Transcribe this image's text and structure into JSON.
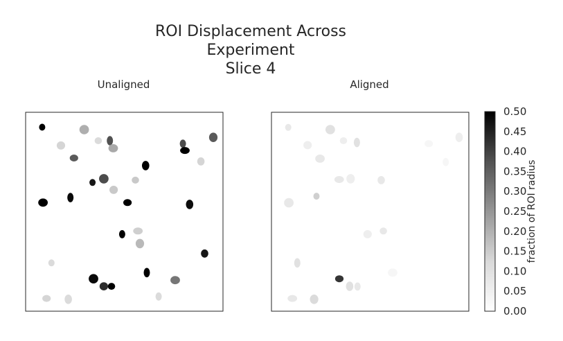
{
  "figure": {
    "title_lines": [
      "ROI Displacement Across",
      "Experiment",
      "Slice 4"
    ]
  },
  "chart_data": {
    "type": "heatmap",
    "title": "ROI Displacement Across Experiment Slice 4",
    "colormap": "Greys",
    "colorbar": {
      "label": "fraction of ROI radius",
      "range": [
        0.0,
        0.5
      ],
      "ticks": [
        "0.00",
        "0.05",
        "0.10",
        "0.15",
        "0.20",
        "0.25",
        "0.30",
        "0.35",
        "0.40",
        "0.45",
        "0.50"
      ]
    },
    "panels": [
      {
        "name": "Unaligned",
        "rois": [
          {
            "x": 8.4,
            "y": 7.5,
            "v": 0.5
          },
          {
            "x": 29.7,
            "y": 8.7,
            "v": 0.13
          },
          {
            "x": 17.9,
            "y": 16.7,
            "v": 0.06
          },
          {
            "x": 36.8,
            "y": 14.3,
            "v": 0.05
          },
          {
            "x": 42.7,
            "y": 14.3,
            "v": 0.32
          },
          {
            "x": 44.4,
            "y": 18.1,
            "v": 0.14
          },
          {
            "x": 24.5,
            "y": 23.0,
            "v": 0.3
          },
          {
            "x": 60.8,
            "y": 26.8,
            "v": 0.5
          },
          {
            "x": 79.7,
            "y": 15.8,
            "v": 0.33
          },
          {
            "x": 80.7,
            "y": 19.2,
            "v": 0.5
          },
          {
            "x": 95.1,
            "y": 12.6,
            "v": 0.3
          },
          {
            "x": 88.8,
            "y": 24.7,
            "v": 0.06
          },
          {
            "x": 33.9,
            "y": 35.3,
            "v": 0.45
          },
          {
            "x": 39.6,
            "y": 33.4,
            "v": 0.33
          },
          {
            "x": 44.6,
            "y": 39.0,
            "v": 0.08
          },
          {
            "x": 55.6,
            "y": 34.1,
            "v": 0.08
          },
          {
            "x": 22.7,
            "y": 42.9,
            "v": 0.48
          },
          {
            "x": 8.8,
            "y": 45.4,
            "v": 0.5
          },
          {
            "x": 51.6,
            "y": 45.4,
            "v": 0.5
          },
          {
            "x": 83.1,
            "y": 46.3,
            "v": 0.47
          },
          {
            "x": 48.9,
            "y": 61.3,
            "v": 0.5
          },
          {
            "x": 56.9,
            "y": 59.7,
            "v": 0.07
          },
          {
            "x": 57.9,
            "y": 66.0,
            "v": 0.11
          },
          {
            "x": 90.7,
            "y": 71.0,
            "v": 0.45
          },
          {
            "x": 13.1,
            "y": 75.7,
            "v": 0.05
          },
          {
            "x": 34.4,
            "y": 83.7,
            "v": 0.48
          },
          {
            "x": 39.6,
            "y": 87.5,
            "v": 0.4
          },
          {
            "x": 43.5,
            "y": 87.5,
            "v": 0.5
          },
          {
            "x": 61.4,
            "y": 80.6,
            "v": 0.5
          },
          {
            "x": 75.8,
            "y": 84.4,
            "v": 0.24
          },
          {
            "x": 10.6,
            "y": 93.6,
            "v": 0.06
          },
          {
            "x": 21.6,
            "y": 94.0,
            "v": 0.05
          },
          {
            "x": 67.4,
            "y": 92.6,
            "v": 0.05
          }
        ]
      },
      {
        "name": "Aligned",
        "rois": [
          {
            "x": 8.5,
            "y": 7.6,
            "v": 0.03
          },
          {
            "x": 29.8,
            "y": 8.7,
            "v": 0.04
          },
          {
            "x": 18.3,
            "y": 16.5,
            "v": 0.02
          },
          {
            "x": 36.5,
            "y": 14.3,
            "v": 0.02
          },
          {
            "x": 43.3,
            "y": 15.2,
            "v": 0.04
          },
          {
            "x": 24.6,
            "y": 23.3,
            "v": 0.03
          },
          {
            "x": 79.7,
            "y": 15.8,
            "v": 0.01
          },
          {
            "x": 95.1,
            "y": 12.6,
            "v": 0.02
          },
          {
            "x": 88.3,
            "y": 25.0,
            "v": 0.01
          },
          {
            "x": 34.3,
            "y": 33.8,
            "v": 0.03
          },
          {
            "x": 40.1,
            "y": 33.4,
            "v": 0.02
          },
          {
            "x": 55.6,
            "y": 34.1,
            "v": 0.03
          },
          {
            "x": 22.8,
            "y": 42.2,
            "v": 0.07
          },
          {
            "x": 8.8,
            "y": 45.5,
            "v": 0.03
          },
          {
            "x": 48.7,
            "y": 61.3,
            "v": 0.02
          },
          {
            "x": 56.7,
            "y": 59.7,
            "v": 0.03
          },
          {
            "x": 13.1,
            "y": 75.7,
            "v": 0.04
          },
          {
            "x": 61.4,
            "y": 80.6,
            "v": 0.01
          },
          {
            "x": 34.4,
            "y": 83.7,
            "v": 0.38
          },
          {
            "x": 39.6,
            "y": 87.5,
            "v": 0.04
          },
          {
            "x": 43.6,
            "y": 87.6,
            "v": 0.03
          },
          {
            "x": 10.6,
            "y": 93.6,
            "v": 0.03
          },
          {
            "x": 21.6,
            "y": 94.0,
            "v": 0.05
          }
        ]
      }
    ]
  }
}
